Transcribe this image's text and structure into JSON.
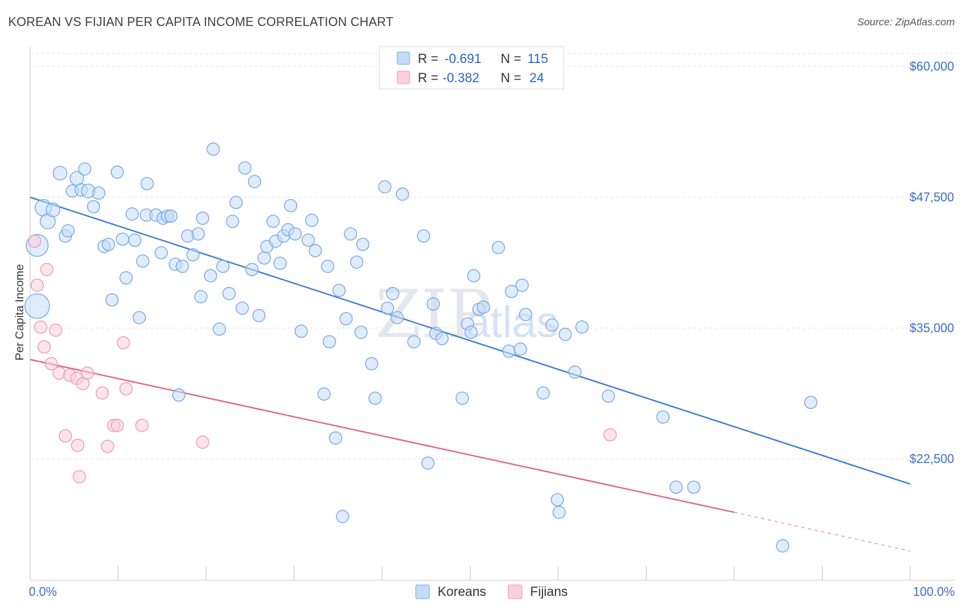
{
  "title": "KOREAN VS FIJIAN PER CAPITA INCOME CORRELATION CHART",
  "source": "Source: ZipAtlas.com",
  "watermark": {
    "zip": "ZIP",
    "atlas": "atlas"
  },
  "legend": {
    "rows": [
      {
        "r_label": "R =",
        "r_value": "-0.691",
        "n_label": "N =",
        "n_value": "115",
        "color": "#7aaae6",
        "fill": "#c5dcf7"
      },
      {
        "r_label": "R =",
        "r_value": "-0.382",
        "n_label": "N =",
        "n_value": "24",
        "color": "#ef9ab5",
        "fill": "#fbd0dd"
      }
    ]
  },
  "bottom_legend": [
    {
      "label": "Koreans",
      "color": "#7aaae6",
      "fill": "#c5dcf7"
    },
    {
      "label": "Fijians",
      "color": "#ef9ab5",
      "fill": "#fbd0dd"
    }
  ],
  "chart_data": {
    "type": "scatter",
    "ylabel": "Per Capita Income",
    "xlim": [
      0,
      100
    ],
    "ylim": [
      10000,
      62000
    ],
    "x_tick_labels": {
      "left": "0.0%",
      "right": "100.0%"
    },
    "y_ticks": [
      {
        "value": 60000,
        "label": "$60,000"
      },
      {
        "value": 47500,
        "label": "$47,500"
      },
      {
        "value": 35000,
        "label": "$35,000"
      },
      {
        "value": 22500,
        "label": "$22,500"
      }
    ],
    "grid": true,
    "series": [
      {
        "name": "Koreans",
        "color": "#3a78d4",
        "marker_stroke": "#7aaae6",
        "marker_fill": "#c5dcf7",
        "trend": {
          "x0": 0,
          "y0": 47500,
          "x1": 100,
          "y1": 20100
        },
        "points": [
          [
            0.8,
            37100,
            18
          ],
          [
            0.8,
            42900,
            16
          ],
          [
            1.5,
            46500,
            12
          ],
          [
            2.0,
            45200,
            11
          ],
          [
            2.6,
            46300,
            10
          ],
          [
            3.4,
            49800,
            10
          ],
          [
            4.0,
            43800,
            9
          ],
          [
            4.3,
            44300,
            9
          ],
          [
            4.8,
            48100,
            9
          ],
          [
            5.3,
            49300,
            10
          ],
          [
            5.8,
            48200,
            9
          ],
          [
            6.2,
            50200,
            9
          ],
          [
            6.6,
            48100,
            10
          ],
          [
            7.2,
            46600,
            9
          ],
          [
            7.8,
            47900,
            9
          ],
          [
            8.4,
            42800,
            9
          ],
          [
            8.9,
            43000,
            9
          ],
          [
            9.3,
            37700,
            9
          ],
          [
            9.9,
            49900,
            9
          ],
          [
            10.5,
            43500,
            9
          ],
          [
            10.9,
            39800,
            9
          ],
          [
            11.6,
            45900,
            9
          ],
          [
            11.9,
            43400,
            9
          ],
          [
            12.4,
            36000,
            9
          ],
          [
            12.8,
            41400,
            9
          ],
          [
            13.2,
            45800,
            9
          ],
          [
            13.3,
            48800,
            9
          ],
          [
            14.3,
            45800,
            9
          ],
          [
            14.9,
            42200,
            9
          ],
          [
            15.1,
            45500,
            9
          ],
          [
            15.6,
            45700,
            9
          ],
          [
            16.0,
            45700,
            9
          ],
          [
            16.5,
            41100,
            9
          ],
          [
            16.9,
            28600,
            9
          ],
          [
            17.3,
            40900,
            9
          ],
          [
            17.9,
            43800,
            9
          ],
          [
            18.5,
            42000,
            9
          ],
          [
            19.1,
            44000,
            9
          ],
          [
            19.4,
            38000,
            9
          ],
          [
            19.6,
            45500,
            9
          ],
          [
            20.5,
            40000,
            9
          ],
          [
            20.8,
            52100,
            9
          ],
          [
            21.5,
            34900,
            9
          ],
          [
            21.9,
            40900,
            9
          ],
          [
            22.6,
            38300,
            9
          ],
          [
            23.0,
            45200,
            9
          ],
          [
            23.4,
            47000,
            9
          ],
          [
            24.1,
            36900,
            9
          ],
          [
            24.4,
            50300,
            9
          ],
          [
            25.2,
            40600,
            9
          ],
          [
            25.5,
            49000,
            9
          ],
          [
            26.0,
            36200,
            9
          ],
          [
            26.6,
            41700,
            9
          ],
          [
            26.9,
            42800,
            9
          ],
          [
            27.6,
            45200,
            9
          ],
          [
            27.9,
            43300,
            9
          ],
          [
            28.4,
            41200,
            9
          ],
          [
            28.8,
            43800,
            9
          ],
          [
            29.3,
            44400,
            9
          ],
          [
            29.6,
            46700,
            9
          ],
          [
            30.1,
            44000,
            9
          ],
          [
            30.8,
            34700,
            9
          ],
          [
            31.6,
            43400,
            9
          ],
          [
            32.0,
            45300,
            9
          ],
          [
            32.4,
            42400,
            9
          ],
          [
            33.4,
            28700,
            9
          ],
          [
            33.8,
            40900,
            9
          ],
          [
            34.0,
            33700,
            9
          ],
          [
            34.7,
            24500,
            9
          ],
          [
            35.1,
            38600,
            9
          ],
          [
            35.5,
            17000,
            9
          ],
          [
            35.9,
            35900,
            9
          ],
          [
            36.4,
            44000,
            9
          ],
          [
            37.1,
            41300,
            9
          ],
          [
            37.6,
            34600,
            9
          ],
          [
            37.8,
            43000,
            9
          ],
          [
            38.8,
            31600,
            9
          ],
          [
            39.2,
            28300,
            9
          ],
          [
            40.3,
            48500,
            9
          ],
          [
            40.6,
            36900,
            9
          ],
          [
            41.2,
            38300,
            9
          ],
          [
            41.7,
            36000,
            9
          ],
          [
            42.3,
            47800,
            9
          ],
          [
            43.6,
            33700,
            9
          ],
          [
            44.7,
            43800,
            9
          ],
          [
            45.2,
            22100,
            9
          ],
          [
            45.8,
            37300,
            9
          ],
          [
            46.1,
            34500,
            9
          ],
          [
            46.8,
            34000,
            9
          ],
          [
            49.1,
            28300,
            9
          ],
          [
            49.7,
            35400,
            9
          ],
          [
            50.1,
            34600,
            9
          ],
          [
            50.4,
            40000,
            9
          ],
          [
            51.0,
            36800,
            9
          ],
          [
            51.5,
            37000,
            9
          ],
          [
            53.2,
            42700,
            9
          ],
          [
            54.4,
            32800,
            9
          ],
          [
            54.7,
            38500,
            9
          ],
          [
            55.7,
            33000,
            9
          ],
          [
            56.3,
            36300,
            9
          ],
          [
            55.9,
            39100,
            9
          ],
          [
            58.3,
            28800,
            9
          ],
          [
            59.3,
            35300,
            9
          ],
          [
            59.9,
            18600,
            9
          ],
          [
            60.1,
            17400,
            9
          ],
          [
            60.8,
            34400,
            9
          ],
          [
            61.9,
            30800,
            9
          ],
          [
            62.7,
            35100,
            9
          ],
          [
            65.7,
            28500,
            9
          ],
          [
            71.9,
            26500,
            9
          ],
          [
            73.4,
            19800,
            9
          ],
          [
            75.4,
            19800,
            9
          ],
          [
            85.5,
            14200,
            9
          ],
          [
            88.7,
            27900,
            9
          ]
        ]
      },
      {
        "name": "Fijians",
        "color": "#e0608d",
        "marker_stroke": "#ef9ab5",
        "marker_fill": "#fbd0dd",
        "trend": {
          "x0": 0,
          "y0": 32000,
          "x1": 80,
          "y1": 17400,
          "dash_x1": 100,
          "dash_y1": 13700
        },
        "points": [
          [
            0.5,
            43300,
            9
          ],
          [
            0.8,
            39100,
            9
          ],
          [
            1.2,
            35100,
            9
          ],
          [
            1.6,
            33200,
            9
          ],
          [
            1.9,
            40600,
            9
          ],
          [
            2.4,
            31600,
            9
          ],
          [
            2.9,
            34800,
            9
          ],
          [
            3.3,
            30700,
            9
          ],
          [
            4.0,
            24700,
            9
          ],
          [
            4.5,
            30500,
            9
          ],
          [
            5.3,
            30200,
            9
          ],
          [
            5.4,
            23800,
            9
          ],
          [
            5.6,
            20800,
            9
          ],
          [
            6.0,
            29700,
            9
          ],
          [
            6.5,
            30700,
            9
          ],
          [
            8.2,
            28800,
            9
          ],
          [
            8.8,
            23700,
            9
          ],
          [
            9.5,
            25700,
            9
          ],
          [
            9.9,
            25700,
            9
          ],
          [
            10.6,
            33600,
            9
          ],
          [
            10.9,
            29200,
            9
          ],
          [
            12.7,
            25700,
            9
          ],
          [
            19.6,
            24100,
            9
          ],
          [
            65.9,
            24800,
            9
          ]
        ]
      }
    ]
  }
}
